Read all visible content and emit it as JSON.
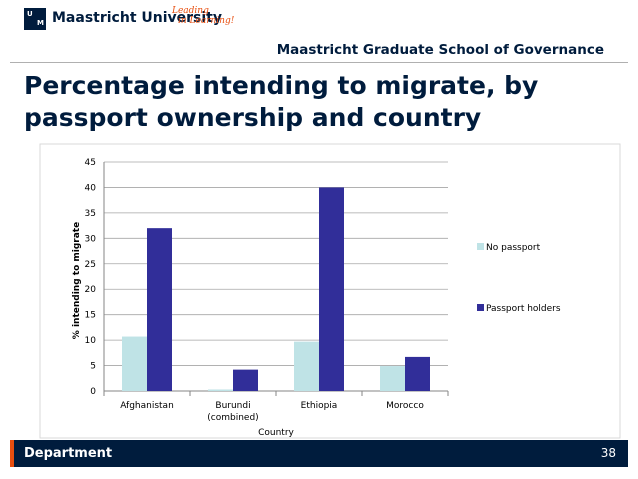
{
  "header": {
    "university": "Maastricht University",
    "tagline_line1": "Leading",
    "tagline_line2": "in Learning!",
    "logo_letters": [
      "U",
      "M"
    ],
    "school": "Maastricht Graduate School of Governance"
  },
  "slide_title": "Percentage intending to migrate, by passport ownership and country",
  "chart_data": {
    "type": "bar",
    "categories": [
      [
        "Afghanistan"
      ],
      [
        "Burundi",
        "(combined)"
      ],
      [
        "Ethiopia"
      ],
      [
        "Morocco"
      ]
    ],
    "series": [
      {
        "name": "No passport",
        "values": [
          10.7,
          0.3,
          9.7,
          4.9
        ],
        "color": "#bfe3e6"
      },
      {
        "name": "Passport holders",
        "values": [
          32,
          4.2,
          40,
          6.7
        ],
        "color": "#312e99"
      }
    ],
    "xlabel": "Country",
    "ylabel": "% intending to migrate",
    "ylim": [
      0,
      45
    ],
    "yticks": [
      0,
      5,
      10,
      15,
      20,
      25,
      30,
      35,
      40,
      45
    ],
    "grid": true,
    "legend_placement": "right"
  },
  "footer": {
    "department": "Department",
    "page_number": "38"
  },
  "colors": {
    "brand_navy": "#001c3d",
    "accent_orange": "#e84e0f"
  }
}
